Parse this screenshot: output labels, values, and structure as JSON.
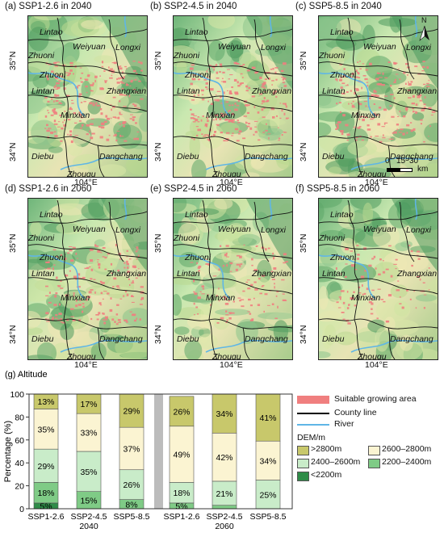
{
  "map_panels": [
    {
      "id": "a",
      "title": "(a) SSP1-2.6 in 2040",
      "density": 0.9
    },
    {
      "id": "b",
      "title": "(b) SSP2-4.5 in 2040",
      "density": 0.9
    },
    {
      "id": "c",
      "title": "(c) SSP5-8.5 in 2040",
      "density": 0.75
    },
    {
      "id": "d",
      "title": "(d) SSP1-2.6 in 2060",
      "density": 0.7
    },
    {
      "id": "e",
      "title": "(e) SSP2-4.5 in 2060",
      "density": 0.45
    },
    {
      "id": "f",
      "title": "(f) SSP5-8.5 in 2060",
      "density": 0.35
    }
  ],
  "counties": [
    "Lintao",
    "Weiyuan",
    "Longxi",
    "Zhuoni",
    "Zhuoni",
    "Lintan",
    "Zhangxian",
    "Minxian",
    "Diebu",
    "Dangchang",
    "Zhouqu"
  ],
  "axes": {
    "lat_top": "35°N",
    "lat_bottom": "34°N",
    "lon": "104°E"
  },
  "scale_bar": {
    "ticks": [
      "0",
      "15",
      "30"
    ],
    "unit": "km"
  },
  "north_arrow": "N",
  "colors": {
    "suitable": "#f07f7f",
    "county_line": "#000000",
    "river": "#5fb6e6",
    "dem_gt2800": "#c8c86b",
    "dem_2600_2800": "#fbf4d2",
    "dem_2400_2600": "#c9ecc9",
    "dem_2200_2400": "#7fcb86",
    "dem_lt2200": "#2f8c48",
    "gap": "#bcbcbc"
  },
  "legend": {
    "suitable": "Suitable growing area",
    "county_line": "County line",
    "river": "River",
    "dem_title": "DEM/m",
    "dem_items": [
      ">2800m",
      "2600–2800m",
      "2400–2600m",
      "2200–2400m",
      "<2200m"
    ]
  },
  "chart_data": {
    "type": "bar",
    "title": "(g) Altitude",
    "ylabel": "Percentage (%)",
    "ylim": [
      0,
      100
    ],
    "yticks": [
      0,
      20,
      40,
      60,
      80,
      100
    ],
    "categories": [
      "SSP1-2.6",
      "SSP2-4.5",
      "SSP5-8.5",
      "SSP1-2.6",
      "SSP2-4.5",
      "SSP5-8.5"
    ],
    "groups": [
      {
        "label": "2040",
        "center_index": 1
      },
      {
        "label": "2060",
        "center_index": 4
      }
    ],
    "series": [
      {
        "name": "<2200m",
        "values": [
          5,
          0,
          0,
          0,
          0,
          0
        ],
        "labels": [
          "5%",
          "",
          "",
          "",
          "",
          ""
        ]
      },
      {
        "name": "2200–2400m",
        "values": [
          18,
          15,
          8,
          5,
          3,
          0
        ],
        "labels": [
          "18%",
          "15%",
          "8%",
          "5%",
          "",
          ""
        ]
      },
      {
        "name": "2400–2600m",
        "values": [
          29,
          35,
          26,
          18,
          21,
          25
        ],
        "labels": [
          "29%",
          "35%",
          "26%",
          "18%",
          "21%",
          "25%"
        ]
      },
      {
        "name": "2600–2800m",
        "values": [
          35,
          33,
          37,
          49,
          42,
          34
        ],
        "labels": [
          "35%",
          "33%",
          "37%",
          "49%",
          "42%",
          "34%"
        ]
      },
      {
        "name": ">2800m",
        "values": [
          13,
          17,
          29,
          26,
          34,
          41
        ],
        "labels": [
          "13%",
          "17%",
          "29%",
          "26%",
          "34%",
          "41%"
        ]
      }
    ]
  }
}
